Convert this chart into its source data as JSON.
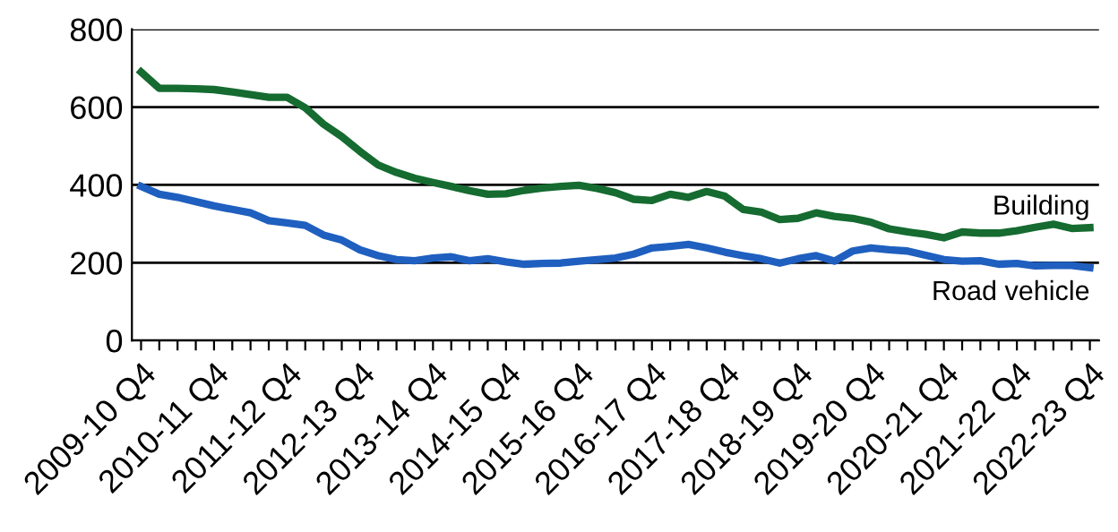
{
  "chart_data": {
    "type": "line",
    "categories": [
      "2009-10 Q4",
      null,
      null,
      null,
      "2010-11 Q4",
      null,
      null,
      null,
      "2011-12 Q4",
      null,
      null,
      null,
      "2012-13 Q4",
      null,
      null,
      null,
      "2013-14 Q4",
      null,
      null,
      null,
      "2014-15 Q4",
      null,
      null,
      null,
      "2015-16 Q4",
      null,
      null,
      null,
      "2016-17 Q4",
      null,
      null,
      null,
      "2017-18 Q4",
      null,
      null,
      null,
      "2018-19 Q4",
      null,
      null,
      null,
      "2019-20 Q4",
      null,
      null,
      null,
      "2020-21 Q4",
      null,
      null,
      null,
      "2021-22 Q4",
      null,
      null,
      null,
      "2022-23 Q4"
    ],
    "series": [
      {
        "name": "Building",
        "color": "#156b30",
        "values": [
          690,
          648,
          648,
          647,
          645,
          639,
          632,
          625,
          625,
          598,
          556,
          524,
          486,
          451,
          432,
          417,
          406,
          396,
          385,
          376,
          377,
          386,
          392,
          396,
          399,
          391,
          380,
          363,
          360,
          376,
          368,
          383,
          371,
          337,
          330,
          311,
          314,
          328,
          319,
          314,
          304,
          287,
          279,
          273,
          264,
          279,
          276,
          276,
          282,
          291,
          299,
          288,
          290
        ]
      },
      {
        "name": "Road vehicle",
        "color": "#1f5fbf",
        "values": [
          396,
          376,
          368,
          357,
          346,
          337,
          328,
          308,
          302,
          296,
          271,
          258,
          233,
          218,
          208,
          205,
          212,
          215,
          205,
          210,
          202,
          196,
          198,
          199,
          204,
          208,
          212,
          222,
          238,
          242,
          247,
          238,
          227,
          218,
          210,
          199,
          210,
          218,
          204,
          230,
          238,
          233,
          230,
          219,
          208,
          204,
          205,
          196,
          198,
          192,
          193,
          193,
          187
        ]
      }
    ],
    "ylim": [
      0,
      800
    ],
    "yticks": [
      0,
      200,
      400,
      600,
      800
    ],
    "grid": "y",
    "legend": false,
    "marker": "none",
    "line_style": "solid"
  }
}
